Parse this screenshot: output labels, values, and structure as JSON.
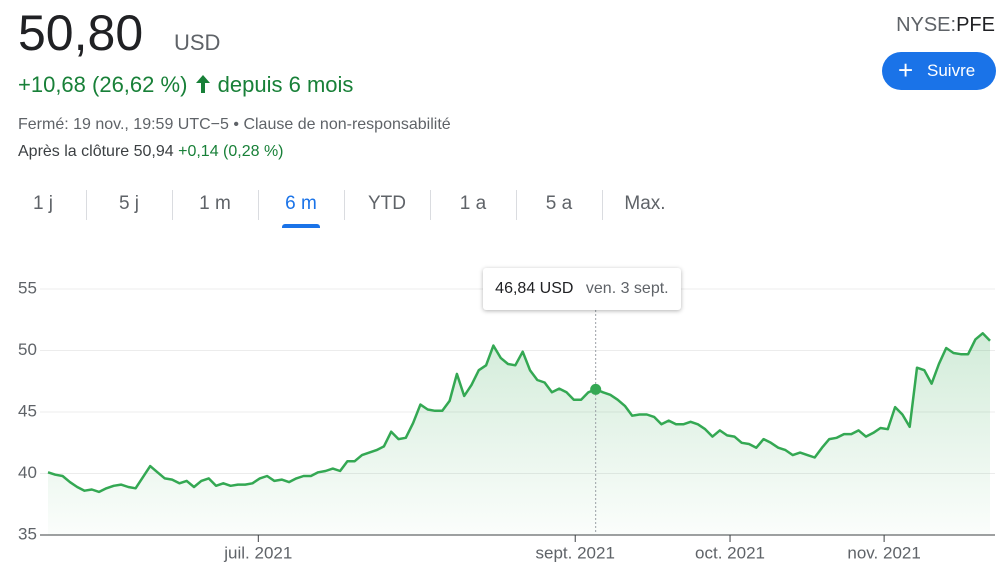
{
  "quote": {
    "price": "50,80",
    "currency": "USD",
    "change": "+10,68 (26,62 %)",
    "period": "depuis 6 mois",
    "status": "Fermé: 19 nov., 19:59 UTC−5",
    "separator": "•",
    "disclaimer": "Clause de non-responsabilité",
    "after_label": "Après la clôture 50,94",
    "after_change": "+0,14 (0,28 %)",
    "exchange": "NYSE:",
    "ticker": "PFE",
    "follow": "Suivre"
  },
  "ranges": {
    "items": [
      "1 j",
      "5 j",
      "1 m",
      "6 m",
      "YTD",
      "1 a",
      "5 a",
      "Max."
    ],
    "active": 3
  },
  "chart_data": {
    "type": "line",
    "color": "#34a853",
    "grid": true,
    "values": [
      40.1,
      39.9,
      39.8,
      39.3,
      38.9,
      38.6,
      38.7,
      38.5,
      38.8,
      39.0,
      39.1,
      38.9,
      38.8,
      39.7,
      40.6,
      40.1,
      39.6,
      39.5,
      39.2,
      39.4,
      38.9,
      39.4,
      39.6,
      39.0,
      39.2,
      39.0,
      39.1,
      39.1,
      39.2,
      39.6,
      39.8,
      39.4,
      39.5,
      39.3,
      39.6,
      39.8,
      39.8,
      40.1,
      40.2,
      40.4,
      40.2,
      41.0,
      41.0,
      41.5,
      41.7,
      41.9,
      42.2,
      43.4,
      42.8,
      42.9,
      44.1,
      45.6,
      45.2,
      45.1,
      45.1,
      45.9,
      48.1,
      46.3,
      47.2,
      48.4,
      48.8,
      50.4,
      49.4,
      48.9,
      48.8,
      49.9,
      48.4,
      47.6,
      47.4,
      46.6,
      46.9,
      46.6,
      46.0,
      46.0,
      46.6,
      46.84,
      46.6,
      46.4,
      46.0,
      45.5,
      44.7,
      44.8,
      44.8,
      44.6,
      44.0,
      44.3,
      44.0,
      44.0,
      44.2,
      44.0,
      43.6,
      43.0,
      43.5,
      43.1,
      43.0,
      42.5,
      42.4,
      42.1,
      42.8,
      42.5,
      42.1,
      41.9,
      41.5,
      41.7,
      41.5,
      41.3,
      42.1,
      42.8,
      42.9,
      43.2,
      43.2,
      43.5,
      43.0,
      43.3,
      43.7,
      43.6,
      45.4,
      44.8,
      43.8,
      48.6,
      48.4,
      47.3,
      48.9,
      50.2,
      49.8,
      49.7,
      49.7,
      50.9,
      51.4,
      50.8
    ],
    "xlim": [
      0,
      129
    ],
    "xticks": [
      {
        "value": 28.8,
        "label": "juil. 2021"
      },
      {
        "value": 72.2,
        "label": "sept. 2021"
      },
      {
        "value": 93.4,
        "label": "oct. 2021"
      },
      {
        "value": 114.5,
        "label": "nov. 2021"
      }
    ],
    "ylim": [
      35,
      55
    ],
    "yticks": [
      35,
      40,
      45,
      50,
      55
    ],
    "tooltip": {
      "index": 75,
      "value_label": "46,84 USD",
      "date": "ven. 3 sept."
    }
  }
}
